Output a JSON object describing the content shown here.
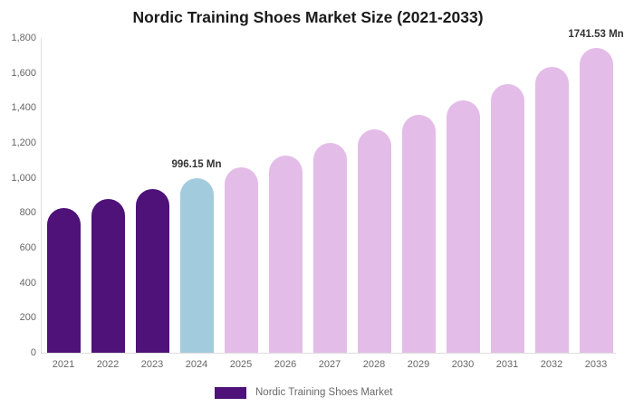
{
  "title": "Nordic Training Shoes Market Size (2021-2033)",
  "legend": {
    "label": "Nordic Training Shoes Market",
    "swatch_color": "#4e1278"
  },
  "colors": {
    "historical": "#4e1278",
    "base_year": "#a3cbde",
    "forecast": "#e4bce8",
    "title_text": "#1a1a1a",
    "axis_text": "#666666",
    "annotation_text": "#333333",
    "axis_line": "#dddddd"
  },
  "chart_data": {
    "type": "bar",
    "title": "Nordic Training Shoes Market Size (2021-2033)",
    "xlabel": "",
    "ylabel": "",
    "ylim": [
      0,
      1800
    ],
    "ytick_step": 200,
    "ytick_labels": [
      "0",
      "200",
      "400",
      "600",
      "800",
      "1,000",
      "1,200",
      "1,400",
      "1,600",
      "1,800"
    ],
    "grid": false,
    "legend_position": "bottom",
    "categories": [
      "2021",
      "2022",
      "2023",
      "2024",
      "2025",
      "2026",
      "2027",
      "2028",
      "2029",
      "2030",
      "2031",
      "2032",
      "2033"
    ],
    "series": [
      {
        "name": "Nordic Training Shoes Market",
        "values": [
          827,
          880,
          936,
          996.15,
          1060,
          1128,
          1200,
          1277,
          1358,
          1445,
          1537,
          1636,
          1741.53
        ],
        "value_roles": [
          "historical",
          "historical",
          "historical",
          "base_year",
          "forecast",
          "forecast",
          "forecast",
          "forecast",
          "forecast",
          "forecast",
          "forecast",
          "forecast",
          "forecast"
        ]
      }
    ],
    "annotations": [
      {
        "category": "2024",
        "text": "996.15 Mn"
      },
      {
        "category": "2033",
        "text": "1741.53 Mn"
      }
    ]
  }
}
